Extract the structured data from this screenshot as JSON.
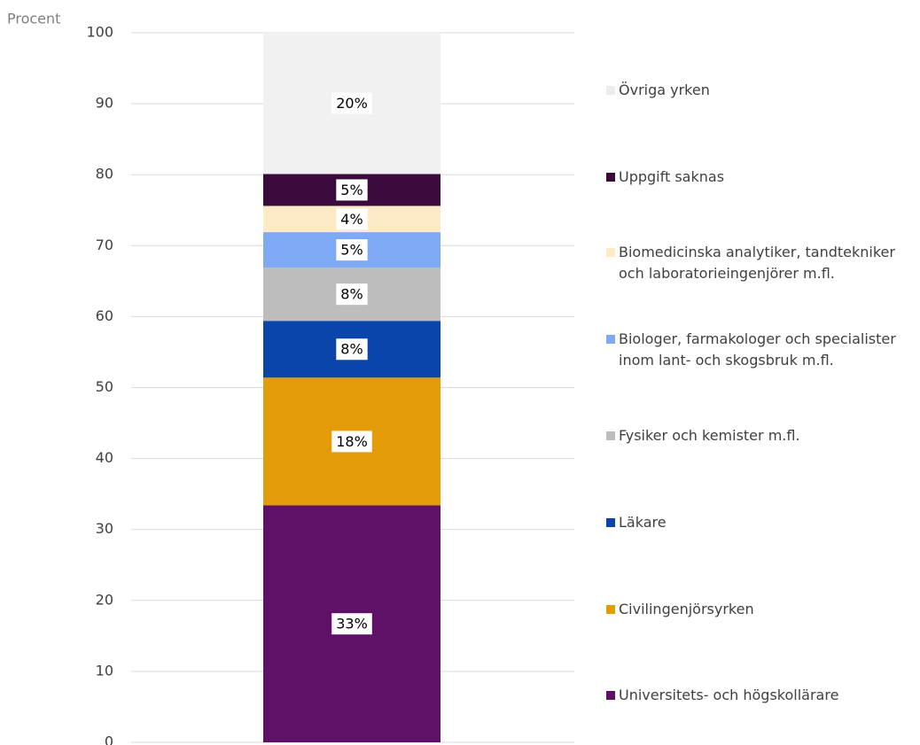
{
  "chart_data": {
    "type": "stacked_bar",
    "y_label": "Procent",
    "categories": [
      null
    ],
    "series": [
      {
        "name": "Universitets- och högskollärare",
        "color": "#5f1167",
        "values": [
          33.4
        ],
        "value_labels": [
          "33%"
        ]
      },
      {
        "name": "Civilingenjörsyrken",
        "color": "#e39b08",
        "values": [
          18.0
        ],
        "value_labels": [
          "18%"
        ]
      },
      {
        "name": "Läkare",
        "color": "#0a46a9",
        "values": [
          8.0
        ],
        "value_labels": [
          "8%"
        ]
      },
      {
        "name": "Fysiker och kemister m.fl.",
        "color": "#bdbdbd",
        "values": [
          7.5
        ],
        "value_labels": [
          "8%"
        ]
      },
      {
        "name": "Biologer, farmakologer och specialister inom lant- och skogsbruk m.fl.",
        "color": "#7eaaf5",
        "values": [
          5.0
        ],
        "value_labels": [
          "5%"
        ]
      },
      {
        "name": "Biomedicinska analytiker, tandtekniker och laboratorieingenjörer m.fl.",
        "color": "#fdebc8",
        "values": [
          3.7
        ],
        "value_labels": [
          "4%"
        ]
      },
      {
        "name": "Uppgift saknas",
        "color": "#3b0a3c",
        "values": [
          4.5
        ],
        "value_labels": [
          "5%"
        ]
      },
      {
        "name": "Övriga yrken",
        "color": "#f1f1f1",
        "values": [
          19.9
        ],
        "value_labels": [
          "20%"
        ]
      }
    ],
    "ylim": [
      0,
      100
    ],
    "yticks": [
      0,
      10,
      20,
      30,
      40,
      50,
      60,
      70,
      80,
      90,
      100
    ],
    "grid": true,
    "legend": "right"
  }
}
